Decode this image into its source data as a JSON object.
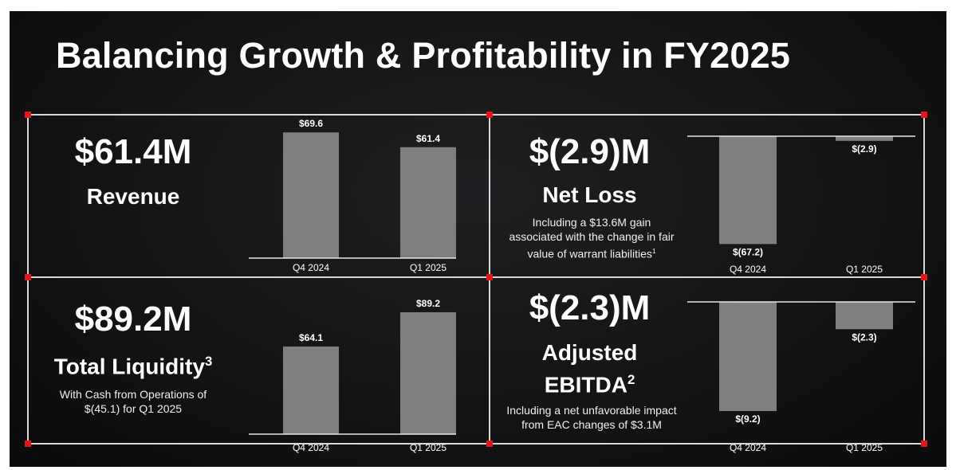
{
  "title": "Balancing Growth & Profitability in FY2025",
  "colors": {
    "bar": "#7f7f7f",
    "accent": "#e01818",
    "frame": "#d8d8d8"
  },
  "panels": {
    "revenue": {
      "big": "$61.4M",
      "label": "Revenue"
    },
    "net_loss": {
      "big": "$(2.9)M",
      "label": "Net Loss",
      "note_line1": "Including a $13.6M gain",
      "note_line2": "associated with the change in fair",
      "note_line3": "value of warrant liabilities",
      "note_sup": "1"
    },
    "liquidity": {
      "big": "$89.2M",
      "label": "Total Liquidity",
      "label_sup": "3",
      "note_line1": "With Cash from Operations of",
      "note_line2": "$(45.1) for Q1 2025"
    },
    "ebitda": {
      "big": "$(2.3)M",
      "label_line1": "Adjusted",
      "label_line2": "EBITDA",
      "label_sup": "2",
      "note_line1": "Including a net unfavorable impact",
      "note_line2": "from EAC changes of $3.1M"
    }
  },
  "chart_data": [
    {
      "type": "bar",
      "name": "Revenue",
      "categories": [
        "Q4 2024",
        "Q1 2025"
      ],
      "values": [
        69.6,
        61.4
      ],
      "value_labels": [
        "$69.6",
        "$61.4"
      ],
      "ylim": [
        0,
        75
      ]
    },
    {
      "type": "bar",
      "name": "Net Loss",
      "categories": [
        "Q4 2024",
        "Q1 2025"
      ],
      "values": [
        -67.2,
        -2.9
      ],
      "value_labels": [
        "$(67.2)",
        "$(2.9)"
      ],
      "ylim": [
        -72,
        0
      ]
    },
    {
      "type": "bar",
      "name": "Total Liquidity",
      "categories": [
        "Q4 2024",
        "Q1 2025"
      ],
      "values": [
        64.1,
        89.2
      ],
      "value_labels": [
        "$64.1",
        "$89.2"
      ],
      "ylim": [
        0,
        95
      ]
    },
    {
      "type": "bar",
      "name": "Adjusted EBITDA",
      "categories": [
        "Q4 2024",
        "Q1 2025"
      ],
      "values": [
        -9.2,
        -2.3
      ],
      "value_labels": [
        "$(9.2)",
        "$(2.3)"
      ],
      "ylim": [
        -9.6,
        0
      ]
    }
  ]
}
